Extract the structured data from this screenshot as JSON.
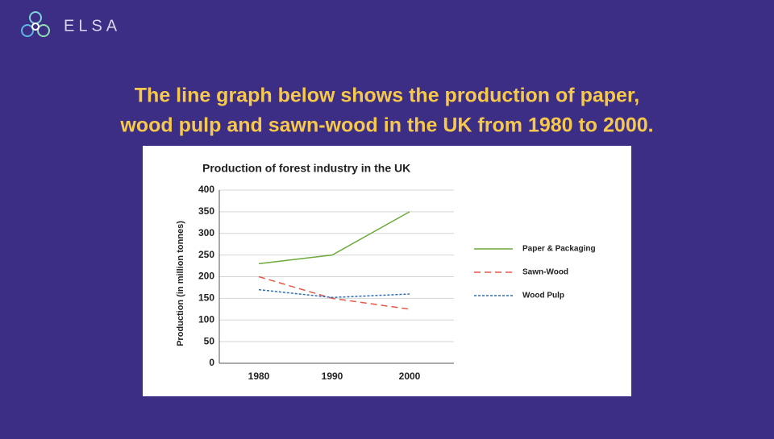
{
  "brand": "ELSA",
  "heading": [
    "The line graph below shows the production of paper,",
    "wood pulp and sawn-wood in the UK from 1980 to 2000."
  ],
  "chart_data": {
    "type": "line",
    "title": "Production of forest industry in the UK",
    "y_label": "Production (in million tonnes)",
    "categories": [
      "1980",
      "1990",
      "2000"
    ],
    "series": [
      {
        "name": "Paper & Packaging",
        "color": "#6aaa3a",
        "line_style": "solid",
        "values": [
          230,
          250,
          350
        ]
      },
      {
        "name": "Sawn-Wood",
        "color": "#e8574a",
        "line_style": "dashed",
        "values": [
          200,
          150,
          125
        ]
      },
      {
        "name": "Wood Pulp",
        "color": "#2f6db5",
        "line_style": "dotted",
        "values": [
          170,
          152,
          160
        ]
      }
    ],
    "ylim": [
      0,
      400
    ],
    "yticks": [
      0,
      50,
      100,
      150,
      200,
      250,
      300,
      350,
      400
    ],
    "grid": true,
    "legend": "right"
  }
}
